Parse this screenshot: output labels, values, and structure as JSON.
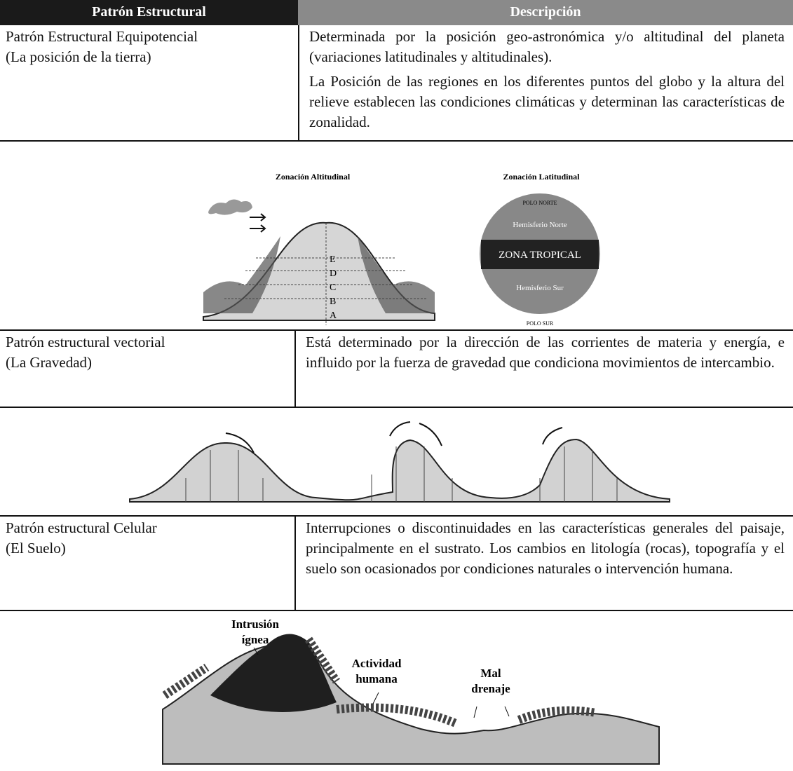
{
  "header": {
    "pattern": "Patrón Estructural",
    "description": "Descripción"
  },
  "rows": [
    {
      "pattern": [
        "Patrón Estructural Equipotencial",
        "(La posición de la tierra)"
      ],
      "description": [
        "Determinada por la posición geo-astronómica y/o altitudinal del planeta (variaciones latitudinales y altitudinales).",
        "La Posición de las regiones en los diferentes puntos del globo y la altura del relieve establecen las condiciones climáticas y determinan las características de zonalidad."
      ]
    },
    {
      "pattern": [
        "Patrón estructural vectorial",
        "(La Gravedad)"
      ],
      "description": [
        "Está determinado por la dirección de las corrientes de materia y energía, e influido por la fuerza de gravedad que condiciona movimientos de intercambio."
      ]
    },
    {
      "pattern": [
        "Patrón estructural Celular",
        "(El Suelo)"
      ],
      "description": [
        "Interrupciones o discontinuidades en las características generales del paisaje, principalmente  en el sustrato. Los cambios en litología (rocas), topografía y el suelo son ocasionados por condiciones naturales o intervención humana."
      ]
    }
  ],
  "figures": {
    "zonation": {
      "altitudinal_title": "Zonación Altitudinal",
      "latitudinal_title": "Zonación Latitudinal",
      "zones": [
        "A",
        "B",
        "C",
        "D",
        "E"
      ],
      "north_pole": "POLO NORTE",
      "tropical": "ZONA TROPICAL",
      "south_pole": "POLO SUR",
      "north_hemisphere": "Hemisferio Norte",
      "south_hemisphere": "Hemisferio Sur"
    },
    "soil": {
      "labels": [
        [
          "Intrusión",
          "ígnea"
        ],
        [
          "Actividad",
          "humana"
        ],
        [
          "Mal",
          "drenaje"
        ]
      ]
    }
  }
}
